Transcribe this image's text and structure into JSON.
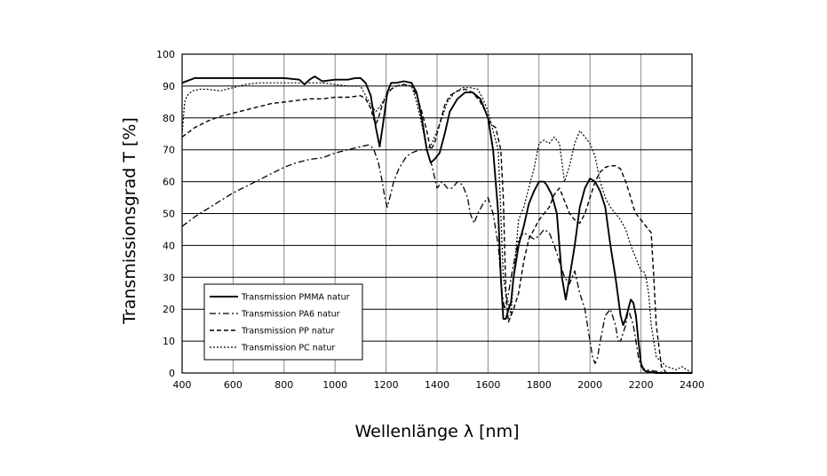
{
  "chart_data": {
    "type": "line",
    "xlabel": "Wellenlänge λ [nm]",
    "ylabel": "Transmissionsgrad T [%]",
    "xlim": [
      400,
      2400
    ],
    "ylim": [
      0,
      100
    ],
    "x_ticks": [
      400,
      600,
      800,
      1000,
      1200,
      1400,
      1600,
      1800,
      2000,
      2200,
      2400
    ],
    "y_ticks": [
      0,
      10,
      20,
      30,
      40,
      50,
      60,
      70,
      80,
      90,
      100
    ],
    "grid": true,
    "legend_position": "bottom-left",
    "series": [
      {
        "name": "Transmission PMMA natur",
        "style": "solid",
        "x": [
          400,
          450,
          500,
          600,
          700,
          800,
          860,
          880,
          900,
          920,
          950,
          1000,
          1050,
          1080,
          1100,
          1120,
          1140,
          1160,
          1175,
          1190,
          1205,
          1220,
          1240,
          1270,
          1300,
          1320,
          1340,
          1360,
          1375,
          1390,
          1410,
          1430,
          1450,
          1480,
          1510,
          1540,
          1570,
          1600,
          1620,
          1640,
          1650,
          1660,
          1670,
          1680,
          1690,
          1700,
          1710,
          1720,
          1740,
          1760,
          1780,
          1800,
          1820,
          1830,
          1850,
          1870,
          1890,
          1905,
          1920,
          1940,
          1960,
          1980,
          2000,
          2020,
          2040,
          2060,
          2080,
          2100,
          2120,
          2130,
          2140,
          2160,
          2170,
          2180,
          2190,
          2200,
          2210,
          2220,
          2260,
          2300,
          2350,
          2400
        ],
        "y": [
          91,
          92.5,
          92.5,
          92.5,
          92.5,
          92.5,
          92,
          90.5,
          92,
          93,
          91.5,
          92,
          92,
          92.5,
          92.5,
          91,
          87,
          77,
          71,
          79,
          88,
          91,
          91,
          91.5,
          91,
          88,
          80,
          70,
          66,
          67,
          69,
          75,
          82,
          86,
          88,
          88,
          86,
          80,
          70,
          50,
          30,
          17,
          17,
          20,
          22,
          30,
          35,
          40,
          46,
          53,
          57,
          60,
          60,
          59,
          56,
          50,
          30,
          23,
          30,
          40,
          52,
          58,
          61,
          60,
          57,
          52,
          40,
          30,
          18,
          15,
          17,
          23,
          22,
          18,
          10,
          3,
          1,
          0.5,
          0,
          0,
          0,
          0
        ]
      },
      {
        "name": "Transmission PA6 natur",
        "style": "dashdot",
        "x": [
          400,
          450,
          500,
          550,
          600,
          650,
          700,
          750,
          800,
          850,
          900,
          950,
          1000,
          1050,
          1100,
          1130,
          1150,
          1170,
          1185,
          1195,
          1205,
          1215,
          1230,
          1250,
          1280,
          1300,
          1330,
          1360,
          1380,
          1400,
          1420,
          1440,
          1460,
          1480,
          1500,
          1520,
          1530,
          1545,
          1560,
          1580,
          1600,
          1620,
          1640,
          1655,
          1665,
          1680,
          1695,
          1710,
          1720,
          1740,
          1760,
          1780,
          1800,
          1820,
          1840,
          1860,
          1880,
          1900,
          1920,
          1940,
          1960,
          1980,
          2000,
          2010,
          2020,
          2030,
          2040,
          2060,
          2080,
          2100,
          2110,
          2120,
          2140,
          2150,
          2170,
          2190,
          2200,
          2220,
          2260,
          2300,
          2350,
          2400
        ],
        "y": [
          46,
          49,
          51.5,
          54,
          56.5,
          58.5,
          60.5,
          62.5,
          64.5,
          66,
          67,
          67.5,
          69,
          70,
          71,
          71.5,
          70.5,
          66,
          60,
          55,
          52,
          55,
          60,
          64,
          68,
          69,
          70,
          70,
          65,
          58,
          60,
          58,
          58,
          60,
          59,
          55,
          50,
          47,
          50,
          53,
          55,
          50,
          40,
          25,
          20,
          25,
          32,
          38,
          42,
          44,
          43,
          42,
          43,
          45,
          44,
          40,
          35,
          30,
          28,
          32,
          25,
          20,
          10,
          5,
          3,
          5,
          10,
          18,
          20,
          15,
          10,
          10,
          15,
          20,
          15,
          5,
          2,
          1,
          0.5,
          0,
          0,
          0
        ]
      },
      {
        "name": "Transmission PP natur",
        "style": "dashed",
        "x": [
          400,
          450,
          500,
          550,
          600,
          650,
          700,
          750,
          800,
          850,
          900,
          950,
          1000,
          1050,
          1100,
          1120,
          1140,
          1150,
          1160,
          1170,
          1185,
          1200,
          1220,
          1240,
          1270,
          1300,
          1320,
          1340,
          1360,
          1375,
          1390,
          1410,
          1430,
          1450,
          1480,
          1510,
          1540,
          1570,
          1590,
          1610,
          1630,
          1650,
          1660,
          1670,
          1680,
          1700,
          1720,
          1740,
          1760,
          1780,
          1800,
          1820,
          1840,
          1860,
          1880,
          1900,
          1920,
          1940,
          1960,
          1980,
          2000,
          2020,
          2040,
          2060,
          2080,
          2100,
          2120,
          2140,
          2160,
          2170,
          2180,
          2200,
          2210,
          2220,
          2240,
          2250,
          2260,
          2280,
          2300,
          2350,
          2400
        ],
        "y": [
          74,
          77,
          79,
          80.5,
          81.5,
          82.5,
          83.5,
          84.5,
          85,
          85.5,
          86,
          86,
          86.5,
          86.5,
          87,
          86,
          83,
          80,
          78,
          80,
          84,
          87,
          89,
          90,
          90.5,
          90,
          87,
          82,
          76,
          70,
          72,
          78,
          84,
          87,
          88.5,
          89,
          88,
          85,
          82,
          78,
          77,
          70,
          55,
          25,
          16,
          20,
          25,
          35,
          42,
          45,
          48,
          50,
          52,
          56,
          58,
          54,
          50,
          48,
          47,
          50,
          55,
          60,
          63,
          64.5,
          65,
          65,
          64,
          60,
          55,
          52,
          50,
          48,
          47,
          46,
          44,
          30,
          15,
          2,
          0,
          0,
          0
        ]
      },
      {
        "name": "Transmission PC natur",
        "style": "dotted",
        "x": [
          400,
          410,
          420,
          440,
          470,
          500,
          550,
          600,
          650,
          700,
          750,
          800,
          850,
          900,
          950,
          1000,
          1050,
          1100,
          1120,
          1140,
          1160,
          1180,
          1200,
          1220,
          1240,
          1270,
          1300,
          1320,
          1340,
          1360,
          1380,
          1400,
          1420,
          1440,
          1470,
          1500,
          1530,
          1560,
          1580,
          1600,
          1620,
          1640,
          1650,
          1660,
          1670,
          1680,
          1690,
          1700,
          1720,
          1740,
          1760,
          1780,
          1800,
          1820,
          1840,
          1860,
          1880,
          1900,
          1920,
          1940,
          1960,
          1980,
          2000,
          2020,
          2040,
          2060,
          2080,
          2100,
          2120,
          2140,
          2160,
          2180,
          2190,
          2200,
          2210,
          2220,
          2230,
          2240,
          2260,
          2300,
          2340,
          2360,
          2380,
          2400
        ],
        "y": [
          75,
          85,
          87,
          88.5,
          89,
          89,
          88.5,
          89.5,
          90.5,
          91,
          91,
          91,
          91,
          91,
          91,
          90.5,
          90,
          90,
          87,
          84,
          82,
          84,
          87,
          89,
          90,
          90.5,
          90,
          85,
          78,
          70,
          72,
          76,
          80,
          85,
          88,
          89.5,
          89.5,
          89,
          86,
          82,
          76,
          70,
          50,
          30,
          25,
          22,
          18,
          30,
          48,
          52,
          58,
          64,
          72,
          73,
          72,
          74,
          72,
          60,
          65,
          72,
          76,
          74,
          72,
          68,
          60,
          55,
          52,
          50,
          48,
          45,
          40,
          36,
          34,
          32,
          32,
          30,
          25,
          15,
          5,
          2,
          1,
          2,
          1,
          0
        ]
      }
    ]
  }
}
